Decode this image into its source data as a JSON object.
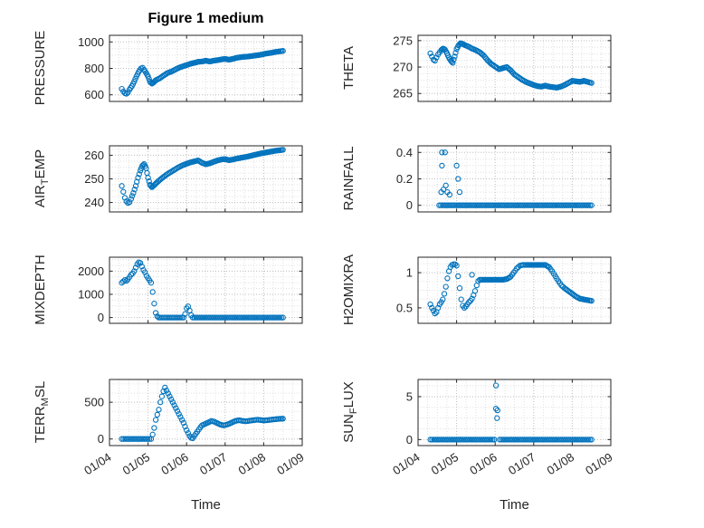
{
  "figure": {
    "title": "Figure 1 medium",
    "accent": "#0072BD",
    "axis": "#262626",
    "major_grid": "#bdbdbd",
    "minor_grid": "#e0e0e0",
    "marker_shape": "open-circle"
  },
  "x_axis": {
    "label": "Time",
    "lim": [
      4,
      9
    ],
    "ticks": [
      4,
      5,
      6,
      7,
      8,
      9
    ],
    "tick_labels": [
      "01/04",
      "01/05",
      "01/06",
      "01/07",
      "01/08",
      "01/09"
    ],
    "minor_step": 0.25
  },
  "chart_data": [
    {
      "id": "pressure",
      "type": "scatter",
      "ylabel": {
        "pre": "PRESSURE",
        "sub": "",
        "post": ""
      },
      "ylim": [
        550,
        1050
      ],
      "yticks": [
        600,
        800,
        1000
      ],
      "ytick_labels": [
        "600",
        "800",
        "1000"
      ],
      "yminor": 50,
      "series": [
        {
          "x": [
            4.32,
            4.36,
            4.4,
            4.44,
            4.48,
            4.52,
            4.58,
            4.64,
            4.7,
            4.76,
            4.82,
            4.86,
            4.9,
            4.95,
            5.0,
            5.05,
            5.1,
            5.15,
            5.2,
            5.3,
            5.4,
            5.5,
            5.6,
            5.7,
            5.8,
            5.9,
            6.0,
            6.1,
            6.2,
            6.3,
            6.4,
            6.5,
            6.6,
            6.7,
            6.8,
            6.9,
            7.0,
            7.1,
            7.2,
            7.3,
            7.4,
            7.5,
            7.6,
            7.7,
            7.8,
            7.9,
            8.0,
            8.1,
            8.2,
            8.3,
            8.4,
            8.5
          ],
          "y": [
            645,
            625,
            612,
            608,
            618,
            640,
            665,
            700,
            740,
            775,
            800,
            805,
            790,
            765,
            740,
            700,
            685,
            695,
            710,
            725,
            745,
            765,
            775,
            790,
            805,
            815,
            825,
            835,
            842,
            850,
            852,
            858,
            852,
            858,
            862,
            868,
            872,
            866,
            872,
            880,
            884,
            888,
            890,
            894,
            898,
            902,
            908,
            914,
            918,
            924,
            928,
            932
          ]
        }
      ]
    },
    {
      "id": "theta",
      "type": "scatter",
      "ylabel": {
        "pre": "THETA",
        "sub": "",
        "post": ""
      },
      "ylim": [
        263.5,
        276
      ],
      "yticks": [
        265,
        270,
        275
      ],
      "ytick_labels": [
        "265",
        "270",
        "275"
      ],
      "yminor": 1.25,
      "series": [
        {
          "x": [
            4.32,
            4.36,
            4.4,
            4.44,
            4.48,
            4.52,
            4.56,
            4.6,
            4.65,
            4.7,
            4.75,
            4.8,
            4.85,
            4.9,
            4.95,
            5.0,
            5.05,
            5.1,
            5.15,
            5.2,
            5.3,
            5.4,
            5.5,
            5.6,
            5.7,
            5.8,
            5.9,
            6.0,
            6.1,
            6.2,
            6.3,
            6.4,
            6.5,
            6.6,
            6.7,
            6.8,
            6.9,
            7.0,
            7.1,
            7.2,
            7.3,
            7.4,
            7.5,
            7.6,
            7.7,
            7.8,
            7.9,
            8.0,
            8.1,
            8.2,
            8.3,
            8.4,
            8.5
          ],
          "y": [
            272.6,
            272.0,
            271.4,
            271.2,
            271.8,
            272.4,
            272.8,
            273.2,
            273.5,
            273.3,
            272.6,
            271.8,
            271.2,
            270.8,
            272.0,
            273.4,
            274.1,
            274.5,
            274.4,
            274.2,
            273.9,
            273.5,
            273.2,
            272.8,
            272.2,
            271.3,
            270.6,
            270.1,
            269.6,
            269.8,
            270.0,
            269.4,
            268.6,
            268.1,
            267.6,
            267.2,
            266.9,
            266.6,
            266.4,
            266.3,
            266.5,
            266.3,
            266.2,
            266.1,
            266.3,
            266.6,
            267.0,
            267.4,
            267.3,
            267.2,
            267.4,
            267.2,
            267.0
          ]
        }
      ]
    },
    {
      "id": "air-temp",
      "type": "scatter",
      "ylabel": {
        "pre": "AIR",
        "sub": "T",
        "post": "EMP"
      },
      "ylim": [
        236,
        264
      ],
      "yticks": [
        240,
        250,
        260
      ],
      "ytick_labels": [
        "240",
        "250",
        "260"
      ],
      "yminor": 2.5,
      "series": [
        {
          "x": [
            4.32,
            4.36,
            4.4,
            4.44,
            4.48,
            4.52,
            4.56,
            4.62,
            4.68,
            4.74,
            4.8,
            4.85,
            4.9,
            4.95,
            5.0,
            5.05,
            5.1,
            5.15,
            5.2,
            5.3,
            5.4,
            5.5,
            5.6,
            5.7,
            5.8,
            5.9,
            6.0,
            6.1,
            6.2,
            6.3,
            6.4,
            6.5,
            6.6,
            6.7,
            6.8,
            6.9,
            7.0,
            7.1,
            7.2,
            7.3,
            7.4,
            7.5,
            7.6,
            7.7,
            7.8,
            7.9,
            8.0,
            8.1,
            8.2,
            8.3,
            8.4,
            8.5
          ],
          "y": [
            247,
            244.5,
            242,
            240.5,
            239.8,
            240.2,
            241.5,
            244,
            247,
            250.5,
            253.5,
            255.5,
            256.3,
            254.5,
            250.5,
            247.5,
            246.5,
            247.2,
            248,
            249.5,
            250.8,
            252,
            253,
            254,
            255,
            255.8,
            256.4,
            257,
            257.4,
            257.8,
            256.8,
            256.2,
            256.6,
            257.2,
            257.8,
            258.2,
            258.4,
            257.9,
            258.2,
            258.6,
            258.9,
            259.2,
            259.5,
            259.9,
            260.3,
            260.7,
            261.0,
            261.3,
            261.6,
            261.9,
            262.1,
            262.3
          ]
        }
      ]
    },
    {
      "id": "rainfall",
      "type": "scatter",
      "ylabel": {
        "pre": "RAINFALL",
        "sub": "",
        "post": ""
      },
      "ylim": [
        -0.05,
        0.45
      ],
      "yticks": [
        0,
        0.2,
        0.4
      ],
      "ytick_labels": [
        "0",
        "0.2",
        "0.4"
      ],
      "yminor": 0.05,
      "series": [
        {
          "x": [
            4.55,
            8.5
          ],
          "y": [
            0,
            0
          ]
        },
        {
          "densify": false,
          "x": [
            4.6,
            4.62,
            4.62,
            4.66,
            4.7,
            4.72,
            4.76,
            4.82,
            5.0,
            5.04,
            5.08
          ],
          "y": [
            0.1,
            0.3,
            0.4,
            0.12,
            0.4,
            0.15,
            0.1,
            0.08,
            0.3,
            0.2,
            0.1
          ]
        }
      ]
    },
    {
      "id": "mixdepth",
      "type": "scatter",
      "ylabel": {
        "pre": "MIXDEPTH",
        "sub": "",
        "post": ""
      },
      "ylim": [
        -250,
        2600
      ],
      "yticks": [
        0,
        1000,
        2000
      ],
      "ytick_labels": [
        "0",
        "1000",
        "2000"
      ],
      "yminor": 250,
      "series": [
        {
          "x": [
            4.32,
            4.36,
            4.4,
            4.44,
            4.48,
            4.52,
            4.56,
            4.6,
            4.64,
            4.68,
            4.72,
            4.76,
            4.8,
            4.84,
            4.88,
            4.92,
            4.96,
            5.0,
            5.04,
            5.08,
            5.12,
            5.16,
            5.2,
            5.24,
            5.28,
            5.92,
            5.96,
            6.0,
            6.04,
            6.08,
            6.12,
            6.16,
            8.5
          ],
          "y": [
            1500,
            1560,
            1620,
            1580,
            1650,
            1750,
            1850,
            1900,
            2000,
            2150,
            2300,
            2380,
            2350,
            2200,
            2050,
            1950,
            1800,
            1700,
            1600,
            1500,
            1100,
            600,
            200,
            50,
            0,
            0,
            150,
            400,
            480,
            300,
            100,
            0,
            0
          ]
        }
      ]
    },
    {
      "id": "h2omixra",
      "type": "scatter",
      "ylabel": {
        "pre": "H2OMIXRA",
        "sub": "",
        "post": ""
      },
      "ylim": [
        0.28,
        1.22
      ],
      "yticks": [
        0.5,
        1
      ],
      "ytick_labels": [
        "0.5",
        "1"
      ],
      "yminor": 0.125,
      "series": [
        {
          "x": [
            4.32,
            4.36,
            4.4,
            4.44,
            4.48,
            4.52,
            4.56,
            4.6,
            4.64,
            4.68,
            4.72,
            4.76,
            4.8,
            4.84,
            4.88,
            4.92,
            4.96,
            5.0,
            5.04,
            5.08,
            5.12,
            5.16,
            5.2,
            5.24,
            5.28,
            5.32,
            5.36,
            5.4,
            5.44,
            5.48,
            5.52,
            5.56,
            5.6,
            5.7,
            5.8,
            5.9,
            6.0,
            6.1,
            6.2,
            6.3,
            6.4,
            6.48,
            6.56,
            6.64,
            6.72,
            6.8,
            6.9,
            7.0,
            7.1,
            7.2,
            7.3,
            7.4,
            7.48,
            7.56,
            7.64,
            7.72,
            7.8,
            7.9,
            8.0,
            8.1,
            8.2,
            8.3,
            8.4,
            8.5
          ],
          "y": [
            0.55,
            0.5,
            0.46,
            0.42,
            0.44,
            0.5,
            0.55,
            0.58,
            0.62,
            0.7,
            0.8,
            0.92,
            1.02,
            1.08,
            1.11,
            1.12,
            1.12,
            1.1,
            0.95,
            0.78,
            0.62,
            0.53,
            0.5,
            0.52,
            0.55,
            0.58,
            0.6,
            0.63,
            0.68,
            0.74,
            0.82,
            0.88,
            0.9,
            0.9,
            0.9,
            0.9,
            0.9,
            0.9,
            0.9,
            0.91,
            0.94,
            1.0,
            1.06,
            1.1,
            1.11,
            1.11,
            1.11,
            1.11,
            1.11,
            1.11,
            1.11,
            1.08,
            1.02,
            0.95,
            0.88,
            0.82,
            0.78,
            0.74,
            0.7,
            0.66,
            0.63,
            0.62,
            0.61,
            0.6
          ]
        },
        {
          "densify": false,
          "x": [
            5.4
          ],
          "y": [
            0.97
          ]
        }
      ]
    },
    {
      "id": "terr-msl",
      "type": "scatter",
      "ylabel": {
        "pre": "TERR",
        "sub": "M",
        "post": "SL"
      },
      "ylim": [
        -90,
        810
      ],
      "yticks": [
        0,
        500
      ],
      "ytick_labels": [
        "0",
        "500"
      ],
      "yminor": 125,
      "series": [
        {
          "x": [
            4.32,
            5.08,
            5.12,
            5.16,
            5.2,
            5.24,
            5.28,
            5.32,
            5.36,
            5.4,
            5.44,
            5.48,
            5.52,
            5.56,
            5.6,
            5.64,
            5.68,
            5.72,
            5.76,
            5.8,
            5.84,
            5.88,
            5.92,
            5.96,
            6.0,
            6.04,
            6.08,
            6.12,
            6.16,
            6.2,
            6.24,
            6.28,
            6.32,
            6.36,
            6.4,
            6.48,
            6.56,
            6.64,
            6.72,
            6.8,
            6.88,
            6.96,
            7.04,
            7.12,
            7.2,
            7.28,
            7.36,
            7.44,
            7.52,
            7.6,
            7.68,
            7.76,
            7.84,
            7.92,
            8.0,
            8.08,
            8.16,
            8.24,
            8.32,
            8.4,
            8.5
          ],
          "y": [
            0,
            0,
            60,
            150,
            260,
            330,
            400,
            500,
            580,
            650,
            700,
            660,
            620,
            580,
            540,
            500,
            460,
            420,
            380,
            340,
            300,
            260,
            220,
            170,
            120,
            80,
            40,
            15,
            10,
            40,
            70,
            100,
            130,
            160,
            185,
            205,
            225,
            245,
            235,
            215,
            195,
            185,
            195,
            210,
            230,
            248,
            255,
            248,
            240,
            245,
            252,
            258,
            262,
            258,
            252,
            255,
            260,
            266,
            270,
            274,
            276
          ]
        }
      ]
    },
    {
      "id": "sun-flux",
      "type": "scatter",
      "ylabel": {
        "pre": "SUN",
        "sub": "F",
        "post": "LUX"
      },
      "ylim": [
        -0.7,
        7
      ],
      "yticks": [
        0,
        5
      ],
      "ytick_labels": [
        "0",
        "5"
      ],
      "yminor": 1.25,
      "series": [
        {
          "x": [
            4.32,
            5.98
          ],
          "y": [
            0,
            0
          ]
        },
        {
          "x": [
            6.12,
            8.5
          ],
          "y": [
            0,
            0
          ]
        },
        {
          "densify": false,
          "x": [
            6.02,
            6.02,
            6.05,
            6.06
          ],
          "y": [
            6.3,
            3.6,
            2.5,
            3.4
          ]
        }
      ]
    }
  ]
}
